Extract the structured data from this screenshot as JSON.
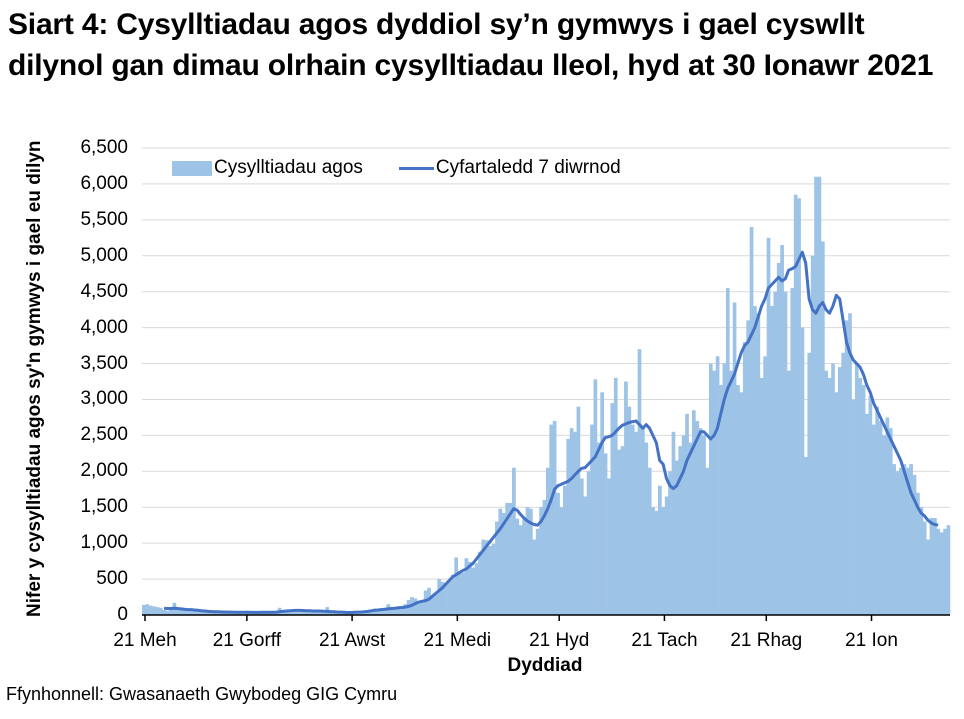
{
  "title": "Siart 4: Cysylltiadau agos dyddiol sy’n gymwys i gael cyswllt dilynol gan dimau olrhain cysylltiadau lleol, hyd at 30 Ionawr 2021",
  "source": "Ffynhonnell: Gwasanaeth Gwybodeg GIG Cymru",
  "colors": {
    "bars": "#9dc3e6",
    "line": "#4472c4",
    "grid": "#d9d9d9",
    "axis": "#000000"
  },
  "chart_data": {
    "type": "bar",
    "title": "Siart 4: Cysylltiadau agos dyddiol sy’n gymwys i gael cyswllt dilynol gan dimau olrhain cysylltiadau lleol, hyd at 30 Ionawr 2021",
    "xlabel": "Dyddiad",
    "ylabel": "Nifer y cysylltiadau agos sy'n gymwys i gael eu dilyn",
    "ylim": [
      0,
      6500
    ],
    "yticks": [
      0,
      500,
      1000,
      1500,
      2000,
      2500,
      3000,
      3500,
      4000,
      4500,
      5000,
      5500,
      6000,
      6500
    ],
    "ytick_labels": [
      "0",
      "500",
      "1,000",
      "1,500",
      "2,000",
      "2,500",
      "3,000",
      "3,500",
      "4,000",
      "4,500",
      "5,000",
      "5,500",
      "6,000",
      "6,500"
    ],
    "xtick_labels": [
      "21 Meh",
      "21 Gorff",
      "21 Awst",
      "21 Medi",
      "21 Hyd",
      "21 Tach",
      "21 Rhag",
      "21 Ion"
    ],
    "xtick_day_index": [
      0,
      30,
      61,
      92,
      122,
      153,
      183,
      214
    ],
    "start_date": "21 Meh 2020",
    "end_label": "30 Ionawr 2021",
    "grid": true,
    "legend_position": "top",
    "series": [
      {
        "name": "Cysylltiadau agos",
        "kind": "bar",
        "values": [
          140,
          150,
          130,
          120,
          110,
          100,
          70,
          60,
          70,
          170,
          90,
          80,
          80,
          70,
          80,
          70,
          60,
          50,
          40,
          50,
          40,
          30,
          40,
          30,
          50,
          40,
          40,
          30,
          40,
          30,
          30,
          40,
          30,
          40,
          30,
          30,
          30,
          50,
          30,
          40,
          100,
          60,
          50,
          60,
          70,
          60,
          70,
          50,
          40,
          40,
          60,
          50,
          40,
          30,
          110,
          40,
          40,
          30,
          20,
          40,
          30,
          30,
          40,
          50,
          30,
          40,
          60,
          70,
          90,
          50,
          60,
          80,
          150,
          90,
          110,
          90,
          120,
          150,
          210,
          250,
          230,
          170,
          200,
          340,
          380,
          270,
          300,
          500,
          460,
          440,
          480,
          560,
          800,
          610,
          590,
          790,
          740,
          660,
          720,
          880,
          1050,
          1040,
          960,
          990,
          1300,
          1480,
          1420,
          1560,
          1560,
          2050,
          1340,
          1250,
          1350,
          1500,
          1480,
          1050,
          1200,
          1500,
          1600,
          2050,
          2650,
          2700,
          1700,
          1500,
          1800,
          2450,
          2600,
          2550,
          2900,
          1900,
          1650,
          2000,
          2650,
          3280,
          2400,
          3100,
          2250,
          1900,
          2950,
          3300,
          2300,
          2350,
          3250,
          2900,
          2650,
          2550,
          3700,
          2600,
          2400,
          2050,
          1500,
          1450,
          1800,
          1500,
          1650,
          2000,
          2550,
          2150,
          2350,
          2500,
          2800,
          2400,
          2850,
          2700,
          2600,
          2500,
          2050,
          3500,
          3400,
          3600,
          3200,
          3500,
          4550,
          3400,
          4350,
          3200,
          3100,
          3800,
          4100,
          5400,
          4300,
          4200,
          3300,
          3600,
          5250,
          4300,
          4500,
          4900,
          5150,
          4500,
          3400,
          4550,
          5850,
          5800,
          4000,
          2200,
          3650,
          5000,
          6100,
          6100,
          5200,
          3400,
          3300,
          3500,
          3100,
          3450,
          3650,
          4100,
          4200,
          3000,
          3500,
          3300,
          3200,
          2800,
          3050,
          2650,
          2900,
          2700,
          2500,
          2750,
          2600,
          2100,
          2000,
          2050,
          2100,
          2050,
          2100,
          1950,
          1700,
          1500,
          1300,
          1050,
          1350,
          1350,
          1200,
          1150,
          1200,
          1250
        ]
      },
      {
        "name": "Cyfartaledd 7 diwrnod",
        "kind": "line",
        "values": [
          null,
          null,
          null,
          null,
          null,
          null,
          95,
          90,
          90,
          95,
          90,
          85,
          80,
          75,
          75,
          70,
          65,
          60,
          55,
          50,
          48,
          45,
          45,
          42,
          42,
          40,
          40,
          38,
          38,
          38,
          37,
          37,
          36,
          36,
          36,
          37,
          38,
          38,
          38,
          40,
          45,
          50,
          55,
          60,
          62,
          64,
          64,
          62,
          60,
          58,
          56,
          55,
          55,
          50,
          50,
          48,
          45,
          42,
          40,
          38,
          35,
          35,
          38,
          40,
          42,
          45,
          50,
          58,
          65,
          70,
          75,
          80,
          85,
          90,
          95,
          100,
          105,
          110,
          120,
          135,
          160,
          180,
          190,
          200,
          220,
          260,
          300,
          340,
          380,
          430,
          480,
          530,
          560,
          590,
          620,
          640,
          680,
          720,
          780,
          840,
          900,
          960,
          1020,
          1080,
          1140,
          1200,
          1270,
          1340,
          1410,
          1480,
          1460,
          1400,
          1350,
          1310,
          1280,
          1260,
          1250,
          1300,
          1380,
          1480,
          1600,
          1750,
          1800,
          1820,
          1840,
          1860,
          1900,
          1950,
          2000,
          2040,
          2050,
          2100,
          2150,
          2200,
          2300,
          2400,
          2470,
          2480,
          2500,
          2550,
          2600,
          2640,
          2660,
          2680,
          2690,
          2700,
          2650,
          2600,
          2650,
          2600,
          2500,
          2400,
          2150,
          2100,
          1900,
          1800,
          1760,
          1800,
          1900,
          2000,
          2150,
          2250,
          2350,
          2450,
          2550,
          2550,
          2500,
          2450,
          2500,
          2600,
          2800,
          3000,
          3150,
          3250,
          3350,
          3500,
          3650,
          3750,
          3800,
          3900,
          4000,
          4150,
          4300,
          4400,
          4550,
          4600,
          4650,
          4700,
          4650,
          4680,
          4800,
          4820,
          4850,
          4950,
          5050,
          4900,
          4400,
          4250,
          4200,
          4300,
          4350,
          4250,
          4200,
          4300,
          4450,
          4400,
          4100,
          3800,
          3650,
          3550,
          3500,
          3450,
          3350,
          3200,
          3100,
          2950,
          2850,
          2750,
          2650,
          2550,
          2450,
          2350,
          2250,
          2150,
          2000,
          1850,
          1700,
          1600,
          1500,
          1420,
          1380,
          1320,
          1280,
          1260,
          1250
        ]
      }
    ]
  }
}
